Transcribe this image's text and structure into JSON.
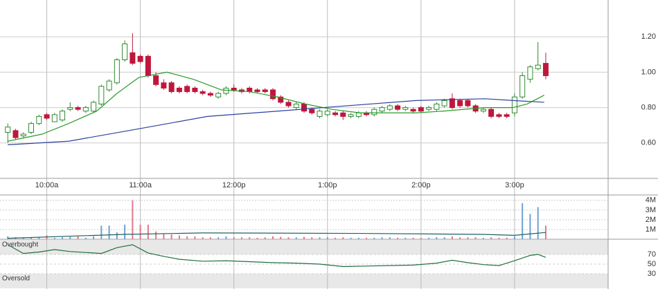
{
  "chart_data": [
    {
      "type": "candlestick",
      "xlim": [
        570,
        960
      ],
      "xticks": [
        {
          "value": 600,
          "label": "10:00a"
        },
        {
          "value": 660,
          "label": "11:00a"
        },
        {
          "value": 720,
          "label": "12:00p"
        },
        {
          "value": 780,
          "label": "1:00p"
        },
        {
          "value": 840,
          "label": "2:00p"
        },
        {
          "value": 900,
          "label": "3:00p"
        }
      ],
      "ylim": [
        0.4,
        1.4
      ],
      "yticks": [
        {
          "value": 0.6,
          "label": "0.60"
        },
        {
          "value": 0.8,
          "label": "0.80"
        },
        {
          "value": 1.0,
          "label": "1.00"
        },
        {
          "value": 1.2,
          "label": "1.20"
        }
      ],
      "grid": true,
      "up_color": "#2e8b2e",
      "down_color": "#c0163c",
      "x": [
        575,
        580,
        585,
        590,
        595,
        600,
        605,
        610,
        615,
        620,
        625,
        630,
        635,
        640,
        645,
        650,
        655,
        660,
        665,
        670,
        675,
        680,
        685,
        690,
        695,
        700,
        705,
        710,
        715,
        720,
        725,
        730,
        735,
        740,
        745,
        750,
        755,
        760,
        765,
        770,
        775,
        780,
        785,
        790,
        795,
        800,
        805,
        810,
        815,
        820,
        825,
        830,
        835,
        840,
        845,
        850,
        855,
        860,
        865,
        870,
        875,
        880,
        885,
        890,
        895,
        900,
        905,
        910,
        915,
        920
      ],
      "open": [
        0.66,
        0.67,
        0.64,
        0.66,
        0.71,
        0.76,
        0.72,
        0.73,
        0.79,
        0.8,
        0.78,
        0.78,
        0.82,
        0.9,
        0.94,
        1.07,
        1.11,
        1.09,
        1.09,
        0.98,
        0.94,
        0.94,
        0.91,
        0.92,
        0.91,
        0.89,
        0.88,
        0.86,
        0.88,
        0.91,
        0.9,
        0.91,
        0.9,
        0.9,
        0.9,
        0.86,
        0.83,
        0.8,
        0.82,
        0.79,
        0.75,
        0.76,
        0.77,
        0.77,
        0.75,
        0.75,
        0.77,
        0.76,
        0.78,
        0.79,
        0.81,
        0.79,
        0.79,
        0.8,
        0.79,
        0.79,
        0.81,
        0.85,
        0.84,
        0.84,
        0.81,
        0.78,
        0.79,
        0.76,
        0.76,
        0.77,
        0.86,
        0.96,
        1.02,
        1.05
      ],
      "high": [
        0.71,
        0.68,
        0.66,
        0.72,
        0.76,
        0.77,
        0.77,
        0.79,
        0.83,
        0.81,
        0.81,
        0.84,
        0.93,
        0.96,
        1.08,
        1.18,
        1.22,
        1.1,
        1.1,
        1.0,
        0.96,
        0.95,
        0.92,
        0.93,
        0.92,
        0.9,
        0.89,
        0.89,
        0.92,
        0.93,
        0.91,
        0.92,
        0.91,
        0.91,
        0.91,
        0.87,
        0.84,
        0.83,
        0.83,
        0.8,
        0.79,
        0.79,
        0.78,
        0.78,
        0.77,
        0.78,
        0.78,
        0.8,
        0.81,
        0.82,
        0.82,
        0.81,
        0.8,
        0.81,
        0.81,
        0.83,
        0.85,
        0.88,
        0.85,
        0.85,
        0.82,
        0.8,
        0.8,
        0.77,
        0.77,
        0.88,
        1.0,
        1.04,
        1.17,
        1.11
      ],
      "low": [
        0.6,
        0.62,
        0.63,
        0.65,
        0.7,
        0.73,
        0.72,
        0.72,
        0.78,
        0.78,
        0.77,
        0.77,
        0.81,
        0.89,
        0.93,
        1.06,
        1.04,
        1.05,
        0.97,
        0.92,
        0.9,
        0.88,
        0.88,
        0.88,
        0.88,
        0.87,
        0.86,
        0.85,
        0.87,
        0.89,
        0.88,
        0.88,
        0.88,
        0.88,
        0.84,
        0.82,
        0.8,
        0.79,
        0.77,
        0.76,
        0.74,
        0.75,
        0.75,
        0.73,
        0.74,
        0.74,
        0.75,
        0.75,
        0.77,
        0.78,
        0.78,
        0.78,
        0.77,
        0.77,
        0.78,
        0.78,
        0.8,
        0.79,
        0.8,
        0.8,
        0.77,
        0.77,
        0.74,
        0.74,
        0.74,
        0.75,
        0.85,
        0.94,
        1.01,
        0.96
      ],
      "close": [
        0.69,
        0.63,
        0.65,
        0.71,
        0.75,
        0.74,
        0.76,
        0.78,
        0.8,
        0.79,
        0.8,
        0.83,
        0.92,
        0.95,
        1.07,
        1.16,
        1.05,
        1.06,
        0.98,
        0.93,
        0.91,
        0.89,
        0.89,
        0.89,
        0.89,
        0.88,
        0.87,
        0.88,
        0.91,
        0.9,
        0.89,
        0.89,
        0.89,
        0.89,
        0.85,
        0.83,
        0.81,
        0.82,
        0.78,
        0.77,
        0.78,
        0.78,
        0.76,
        0.75,
        0.76,
        0.77,
        0.76,
        0.79,
        0.8,
        0.81,
        0.79,
        0.8,
        0.78,
        0.78,
        0.8,
        0.82,
        0.84,
        0.8,
        0.81,
        0.81,
        0.78,
        0.79,
        0.75,
        0.75,
        0.75,
        0.86,
        0.98,
        1.03,
        1.04,
        0.98
      ],
      "series": [
        {
          "color": "#2a9a2a",
          "x": [
            575,
            597,
            614,
            632,
            645,
            659,
            677,
            694,
            712,
            730,
            748,
            766,
            783,
            801,
            819,
            837,
            854,
            881,
            899,
            908,
            919
          ],
          "values": [
            0.61,
            0.65,
            0.71,
            0.78,
            0.88,
            0.97,
            1.0,
            0.96,
            0.9,
            0.89,
            0.86,
            0.82,
            0.79,
            0.77,
            0.77,
            0.77,
            0.78,
            0.8,
            0.8,
            0.82,
            0.87
          ]
        },
        {
          "color": "#2b3f9e",
          "x": [
            575,
            614,
            659,
            703,
            748,
            792,
            837,
            881,
            899,
            919
          ],
          "values": [
            0.59,
            0.61,
            0.68,
            0.75,
            0.78,
            0.81,
            0.84,
            0.85,
            0.84,
            0.83
          ]
        }
      ]
    },
    {
      "type": "volume",
      "xlim": [
        570,
        960
      ],
      "ylim": [
        0,
        4200000
      ],
      "yticks": [
        {
          "value": 1000000,
          "label": "1M"
        },
        {
          "value": 2000000,
          "label": "2M"
        },
        {
          "value": 3000000,
          "label": "3M"
        },
        {
          "value": 4000000,
          "label": "4M"
        }
      ],
      "grid": true,
      "up_color": "#6fa0d0",
      "down_color": "#e0788c",
      "values": [
        300000,
        200000,
        150000,
        200000,
        200000,
        400000,
        150000,
        200000,
        250000,
        300000,
        150000,
        300000,
        1400000,
        1400000,
        700000,
        1500000,
        4000000,
        1500000,
        1500000,
        800000,
        600000,
        500000,
        400000,
        300000,
        300000,
        200000,
        200000,
        200000,
        300000,
        200000,
        200000,
        200000,
        150000,
        200000,
        300000,
        250000,
        200000,
        200000,
        250000,
        200000,
        200000,
        200000,
        150000,
        200000,
        150000,
        150000,
        150000,
        150000,
        200000,
        200000,
        150000,
        150000,
        150000,
        150000,
        150000,
        200000,
        200000,
        300000,
        200000,
        200000,
        200000,
        150000,
        200000,
        150000,
        150000,
        300000,
        3700000,
        2600000,
        3300000,
        1400000
      ],
      "series": [
        {
          "color": "#1f5f5f",
          "x": [
            575,
            650,
            700,
            800,
            880,
            900,
            920
          ],
          "values": [
            100000,
            500000,
            650000,
            600000,
            500000,
            400000,
            700000
          ]
        }
      ]
    },
    {
      "type": "line",
      "xlim": [
        570,
        960
      ],
      "ylim": [
        0,
        100
      ],
      "yticks": [
        30,
        50,
        70
      ],
      "grid": true,
      "bands": [
        {
          "label": "Overbought",
          "from": 70,
          "to": 100
        },
        {
          "label": "Oversold",
          "from": 0,
          "to": 30
        }
      ],
      "series": [
        {
          "color": "#1f6f3f",
          "x": [
            575,
            585,
            595,
            605,
            615,
            625,
            635,
            645,
            655,
            665,
            675,
            685,
            700,
            715,
            730,
            745,
            760,
            775,
            790,
            805,
            820,
            835,
            850,
            860,
            870,
            880,
            890,
            900,
            910,
            915,
            920
          ],
          "values": [
            90,
            72,
            75,
            80,
            76,
            74,
            72,
            84,
            90,
            73,
            66,
            60,
            56,
            57,
            55,
            53,
            52,
            50,
            45,
            46,
            47,
            48,
            52,
            58,
            53,
            49,
            47,
            57,
            68,
            70,
            64
          ]
        }
      ]
    }
  ]
}
